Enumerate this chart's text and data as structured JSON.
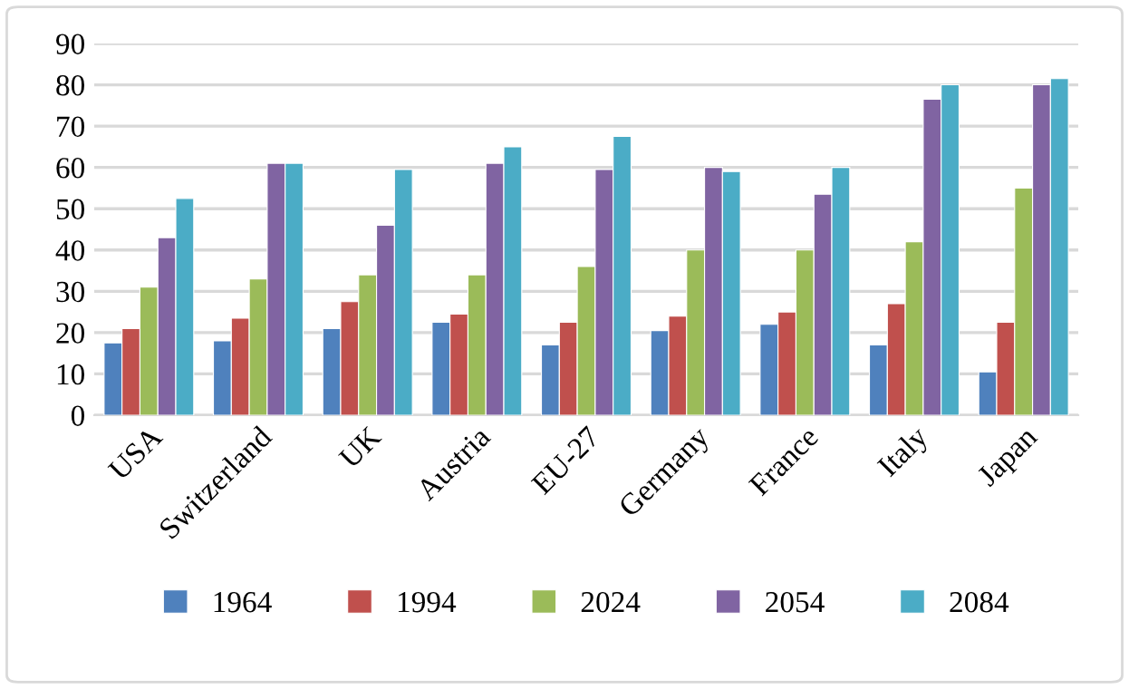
{
  "chart_data": {
    "type": "bar",
    "categories": [
      "USA",
      "Switzerland",
      "UK",
      "Austria",
      "EU-27",
      "Germany",
      "France",
      "Italy",
      "Japan"
    ],
    "series": [
      {
        "name": "1964",
        "color": "#4f81bd",
        "values": [
          17.5,
          18,
          21,
          22.5,
          17,
          20.5,
          22,
          17,
          10.5
        ]
      },
      {
        "name": "1994",
        "color": "#c0504d",
        "values": [
          21,
          23.5,
          27.5,
          24.5,
          22.5,
          24,
          25,
          27,
          22.5
        ]
      },
      {
        "name": "2024",
        "color": "#9bbb59",
        "values": [
          31,
          33,
          34,
          34,
          36,
          40,
          40,
          42,
          55
        ]
      },
      {
        "name": "2054",
        "color": "#8064a2",
        "values": [
          43,
          61,
          46,
          61,
          59.5,
          60,
          53.5,
          76.5,
          80
        ]
      },
      {
        "name": "2084",
        "color": "#4bacc6",
        "values": [
          52.5,
          61,
          59.5,
          65,
          67.5,
          59,
          60,
          80,
          81.5
        ]
      }
    ],
    "ylim": [
      0,
      90
    ],
    "yticks": [
      0,
      10,
      20,
      30,
      40,
      50,
      60,
      70,
      80,
      90
    ],
    "grid": "y",
    "legend": "bottom"
  }
}
